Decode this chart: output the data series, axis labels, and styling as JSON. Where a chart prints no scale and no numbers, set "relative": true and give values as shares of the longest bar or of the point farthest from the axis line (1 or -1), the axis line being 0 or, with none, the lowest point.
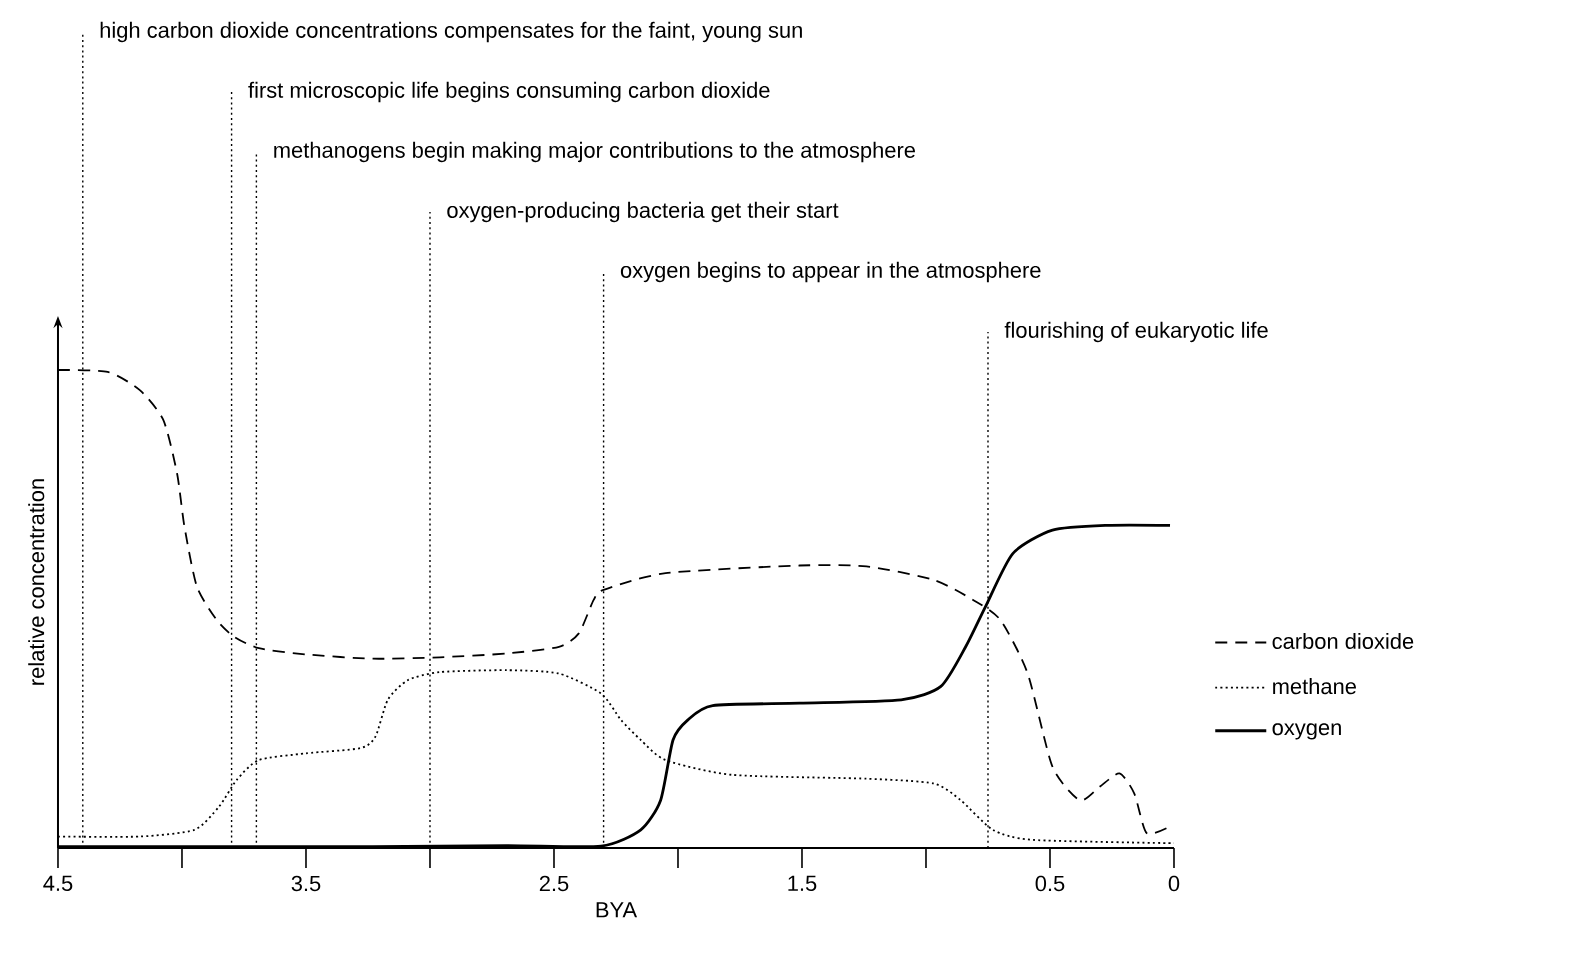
{
  "chart_data": {
    "type": "line",
    "xlabel": "BYA",
    "ylabel": "relative concentration",
    "relative": true,
    "xlim": [
      4.5,
      0
    ],
    "xticks": [
      4.5,
      {
        "value": 4,
        "label": null
      },
      3.5,
      {
        "value": 3,
        "label": null
      },
      2.5,
      {
        "value": 2,
        "label": null
      },
      1.5,
      {
        "value": 1,
        "label": null
      },
      0.5,
      0
    ],
    "legend": "right",
    "series": [
      {
        "name": "carbon dioxide",
        "color": "#000000",
        "line_style": "dashed",
        "x": [
          4.5,
          4.3,
          4.17,
          4.075,
          4.02,
          3.99,
          3.94,
          3.86,
          3.79,
          3.69,
          3.5,
          3.23,
          2.96,
          2.69,
          2.48,
          2.4,
          2.34,
          2.3,
          2.05,
          1.51,
          1.24,
          0.97,
          0.81,
          0.7,
          0.59,
          0.49,
          0.38,
          0.3,
          0.22,
          0.16,
          0.11,
          0.016
        ],
        "values": [
          1.0,
          0.996,
          0.958,
          0.895,
          0.784,
          0.672,
          0.547,
          0.477,
          0.442,
          0.418,
          0.405,
          0.396,
          0.399,
          0.407,
          0.421,
          0.449,
          0.519,
          0.54,
          0.575,
          0.591,
          0.589,
          0.561,
          0.519,
          0.477,
          0.365,
          0.17,
          0.1,
          0.128,
          0.156,
          0.114,
          0.031,
          0.045
        ]
      },
      {
        "name": "methane",
        "color": "#000000",
        "line_style": "dotted",
        "x": [
          4.5,
          4.17,
          3.95,
          3.85,
          3.78,
          3.69,
          3.5,
          3.28,
          3.22,
          3.17,
          3.09,
          2.96,
          2.69,
          2.48,
          2.31,
          2.23,
          2.15,
          2.05,
          1.78,
          1.24,
          0.97,
          0.86,
          0.73,
          0.57,
          0.0
        ],
        "values": [
          0.024,
          0.024,
          0.038,
          0.087,
          0.142,
          0.184,
          0.198,
          0.209,
          0.233,
          0.31,
          0.351,
          0.368,
          0.372,
          0.365,
          0.323,
          0.268,
          0.226,
          0.184,
          0.153,
          0.145,
          0.135,
          0.1,
          0.038,
          0.017,
          0.01
        ]
      },
      {
        "name": "oxygen",
        "color": "#000000",
        "line_style": "solid",
        "x": [
          4.5,
          3.23,
          2.69,
          2.31,
          2.15,
          2.07,
          2.02,
          1.96,
          1.86,
          1.51,
          1.1,
          0.94,
          0.84,
          0.76,
          0.65,
          0.49,
          0.27,
          0.016
        ],
        "values": [
          0.003,
          0.003,
          0.005,
          0.004,
          0.038,
          0.1,
          0.226,
          0.268,
          0.298,
          0.303,
          0.31,
          0.338,
          0.421,
          0.505,
          0.616,
          0.665,
          0.675,
          0.675
        ]
      }
    ],
    "ref_lines": [
      {
        "axis": "x",
        "value": 4.4,
        "label": "high carbon dioxide concentrations compensates for the faint, young sun",
        "line_style": "dotted"
      },
      {
        "axis": "x",
        "value": 3.8,
        "label": "first microscopic life begins consuming carbon dioxide",
        "line_style": "dotted"
      },
      {
        "axis": "x",
        "value": 3.7,
        "label": "methanogens begin making major contributions to the atmosphere",
        "line_style": "dotted"
      },
      {
        "axis": "x",
        "value": 3.0,
        "label": "oxygen-producing bacteria get their start",
        "line_style": "dotted"
      },
      {
        "axis": "x",
        "value": 2.3,
        "label": "oxygen begins to appear in the atmosphere",
        "line_style": "dotted"
      },
      {
        "axis": "x",
        "value": 0.75,
        "label": "flourishing of eukaryotic life",
        "line_style": "dotted"
      }
    ]
  }
}
